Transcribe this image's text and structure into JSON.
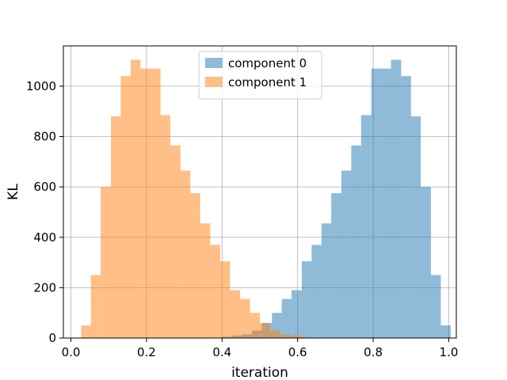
{
  "chart_data": {
    "type": "histogram",
    "title": "",
    "xlabel": "iteration",
    "ylabel": "KL",
    "xlim": [
      -0.02,
      1.02
    ],
    "ylim": [
      0,
      1160
    ],
    "xticks": [
      0.0,
      0.2,
      0.4,
      0.6,
      0.8,
      1.0
    ],
    "xtick_labels": [
      "0.0",
      "0.2",
      "0.4",
      "0.6",
      "0.8",
      "1.0"
    ],
    "yticks": [
      0,
      200,
      400,
      600,
      800,
      1000
    ],
    "ytick_labels": [
      "0",
      "200",
      "400",
      "600",
      "800",
      "1000"
    ],
    "grid": true,
    "legend_position": "top-center",
    "series": [
      {
        "name": "component 0",
        "color": "#1f77b4",
        "alpha": 0.5,
        "bins": [
          {
            "x0": 0.4,
            "x1": 0.426,
            "count": 5
          },
          {
            "x0": 0.426,
            "x1": 0.453,
            "count": 10
          },
          {
            "x0": 0.453,
            "x1": 0.479,
            "count": 15
          },
          {
            "x0": 0.479,
            "x1": 0.505,
            "count": 30
          },
          {
            "x0": 0.505,
            "x1": 0.532,
            "count": 60
          },
          {
            "x0": 0.532,
            "x1": 0.558,
            "count": 100
          },
          {
            "x0": 0.558,
            "x1": 0.584,
            "count": 155
          },
          {
            "x0": 0.584,
            "x1": 0.611,
            "count": 190
          },
          {
            "x0": 0.611,
            "x1": 0.637,
            "count": 305
          },
          {
            "x0": 0.637,
            "x1": 0.663,
            "count": 370
          },
          {
            "x0": 0.663,
            "x1": 0.689,
            "count": 455
          },
          {
            "x0": 0.689,
            "x1": 0.716,
            "count": 575
          },
          {
            "x0": 0.716,
            "x1": 0.742,
            "count": 665
          },
          {
            "x0": 0.742,
            "x1": 0.768,
            "count": 765
          },
          {
            "x0": 0.768,
            "x1": 0.795,
            "count": 885
          },
          {
            "x0": 0.795,
            "x1": 0.821,
            "count": 1070
          },
          {
            "x0": 0.821,
            "x1": 0.847,
            "count": 1070
          },
          {
            "x0": 0.847,
            "x1": 0.874,
            "count": 1105
          },
          {
            "x0": 0.874,
            "x1": 0.9,
            "count": 1040
          },
          {
            "x0": 0.9,
            "x1": 0.926,
            "count": 880
          },
          {
            "x0": 0.926,
            "x1": 0.953,
            "count": 600
          },
          {
            "x0": 0.953,
            "x1": 0.979,
            "count": 250
          },
          {
            "x0": 0.979,
            "x1": 1.005,
            "count": 50
          }
        ]
      },
      {
        "name": "component 1",
        "color": "#ff7f0e",
        "alpha": 0.5,
        "bins": [
          {
            "x0": 0.027,
            "x1": 0.053,
            "count": 50
          },
          {
            "x0": 0.053,
            "x1": 0.079,
            "count": 250
          },
          {
            "x0": 0.079,
            "x1": 0.106,
            "count": 600
          },
          {
            "x0": 0.106,
            "x1": 0.132,
            "count": 880
          },
          {
            "x0": 0.132,
            "x1": 0.158,
            "count": 1040
          },
          {
            "x0": 0.158,
            "x1": 0.184,
            "count": 1105
          },
          {
            "x0": 0.184,
            "x1": 0.211,
            "count": 1070
          },
          {
            "x0": 0.211,
            "x1": 0.237,
            "count": 1070
          },
          {
            "x0": 0.237,
            "x1": 0.263,
            "count": 885
          },
          {
            "x0": 0.263,
            "x1": 0.29,
            "count": 765
          },
          {
            "x0": 0.29,
            "x1": 0.316,
            "count": 665
          },
          {
            "x0": 0.316,
            "x1": 0.342,
            "count": 575
          },
          {
            "x0": 0.342,
            "x1": 0.369,
            "count": 455
          },
          {
            "x0": 0.369,
            "x1": 0.395,
            "count": 370
          },
          {
            "x0": 0.395,
            "x1": 0.421,
            "count": 305
          },
          {
            "x0": 0.421,
            "x1": 0.448,
            "count": 190
          },
          {
            "x0": 0.448,
            "x1": 0.474,
            "count": 155
          },
          {
            "x0": 0.474,
            "x1": 0.5,
            "count": 100
          },
          {
            "x0": 0.5,
            "x1": 0.526,
            "count": 60
          },
          {
            "x0": 0.526,
            "x1": 0.553,
            "count": 30
          },
          {
            "x0": 0.553,
            "x1": 0.579,
            "count": 15
          },
          {
            "x0": 0.579,
            "x1": 0.605,
            "count": 10
          },
          {
            "x0": 0.605,
            "x1": 0.632,
            "count": 5
          }
        ]
      }
    ]
  }
}
